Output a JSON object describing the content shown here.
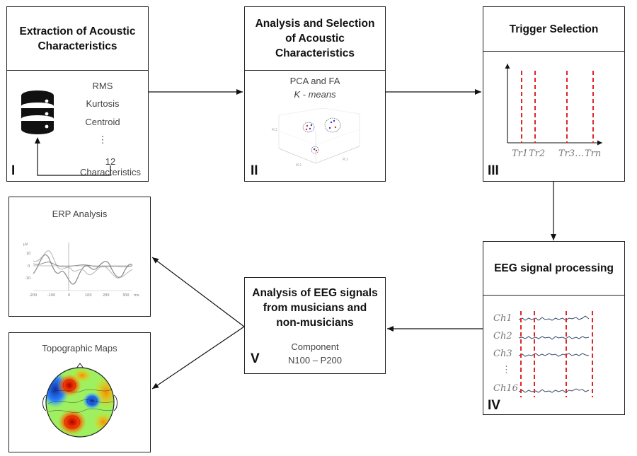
{
  "stage1": {
    "title": "Extraction of Acoustic Characteristics",
    "numeral": "I",
    "features": [
      "RMS",
      "Kurtosis",
      "Centroid",
      "⋮",
      "12 Characteristics"
    ]
  },
  "stage2": {
    "title": "Analysis and Selection of Acoustic Characteristics",
    "numeral": "II",
    "method1": "PCA and FA",
    "method2": "K - means"
  },
  "stage3": {
    "title": "Trigger Selection",
    "numeral": "III",
    "triggers": [
      "Tr1",
      "Tr2",
      "Tr3…",
      "Trn"
    ]
  },
  "stage4": {
    "title": "EEG signal processing",
    "numeral": "IV",
    "channels": [
      "Ch1",
      "Ch2",
      "Ch3",
      "⋮",
      "Ch16"
    ]
  },
  "stage5": {
    "title": "Analysis of EEG signals from musicians and non-musicians",
    "numeral": "V",
    "component_label": "Component",
    "component_value": "N100 – P200"
  },
  "erp": {
    "title": "ERP Analysis",
    "unit_y": "μV",
    "unit_x": "ms",
    "yticks": [
      "10",
      "0",
      "-10"
    ],
    "xticks": [
      "-200",
      "-100",
      "0",
      "100",
      "200",
      "300"
    ]
  },
  "topo": {
    "title": "Topographic Maps"
  }
}
